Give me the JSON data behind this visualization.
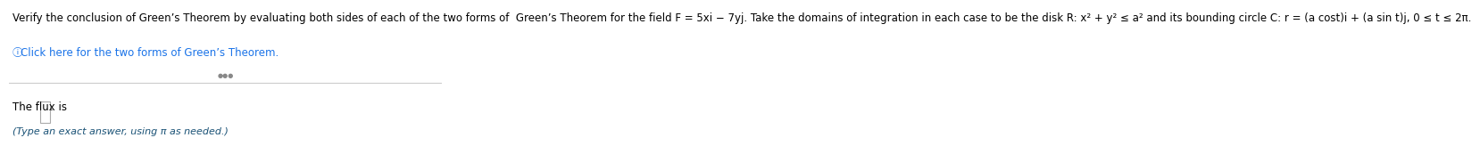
{
  "line1": "Verify the conclusion of Green’s Theorem by evaluating both sides of each of the two forms of  Green’s Theorem for the field F = 5xi − 7yj. Take the domains of integration in each case to be the disk R: x² + y² ≤ a² and its bounding circle C: r = (a cost)i + (a sin t)j, 0 ≤ t ≤ 2π.",
  "line2_icon_color": "#1a73e8",
  "line2_text": "Click here for the two forms of Green’s Theorem.",
  "separator_color": "#cccccc",
  "dots_text": "• • •",
  "flux_label": "The flux is",
  "input_box_color": "#ffffff",
  "input_box_border": "#aaaaaa",
  "hint_text": "(Type an exact answer, using π as needed.)",
  "hint_color": "#1a5276",
  "bg_color": "#ffffff",
  "main_text_color": "#000000",
  "main_fontsize": 8.5,
  "hint_fontsize": 8.0,
  "line2_fontsize": 8.5
}
